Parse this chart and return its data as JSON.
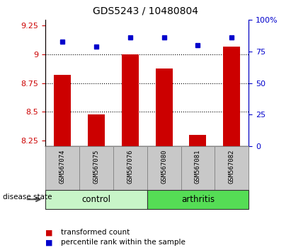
{
  "title": "GDS5243 / 10480804",
  "samples": [
    "GSM567074",
    "GSM567075",
    "GSM567076",
    "GSM567080",
    "GSM567081",
    "GSM567082"
  ],
  "red_values": [
    8.82,
    8.48,
    9.0,
    8.88,
    8.3,
    9.07
  ],
  "blue_values": [
    83,
    79,
    86,
    86,
    80,
    86
  ],
  "ylim_left": [
    8.2,
    9.3
  ],
  "ylim_right": [
    0,
    100
  ],
  "yticks_left": [
    8.25,
    8.5,
    8.75,
    9.0,
    9.25
  ],
  "yticks_right": [
    0,
    25,
    50,
    75,
    100
  ],
  "ytick_labels_left": [
    "8.25",
    "8.5",
    "8.75",
    "9",
    "9.25"
  ],
  "ytick_labels_right": [
    "0",
    "25",
    "50",
    "75",
    "100%"
  ],
  "grid_yticks": [
    9.0,
    8.75,
    8.5
  ],
  "control_color": "#c8f5c8",
  "arthritis_color": "#55dd55",
  "bar_color": "#CC0000",
  "dot_color": "#0000CC",
  "label_color_red": "#CC0000",
  "label_color_blue": "#0000CC",
  "background_color": "#ffffff",
  "sample_box_color": "#c8c8c8",
  "sample_box_edge": "#888888",
  "legend_red_label": "transformed count",
  "legend_blue_label": "percentile rank within the sample",
  "disease_state_label": "disease state",
  "control_label": "control",
  "arthritis_label": "arthritis"
}
